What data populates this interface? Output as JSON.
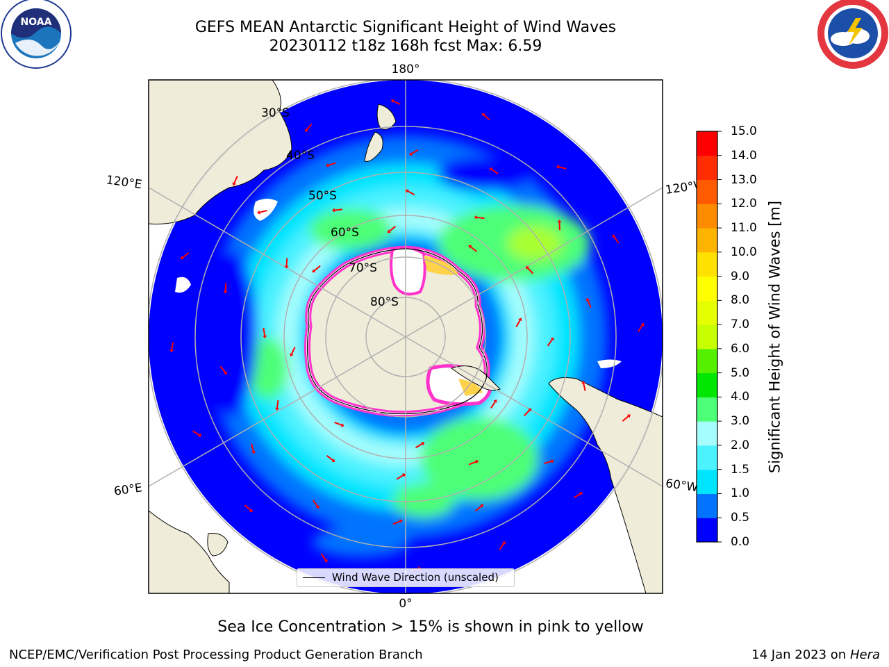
{
  "header": {
    "title_line1": "GEFS MEAN Antarctic Significant Height of Wind Waves",
    "title_line2": "20230112 t18z 168h fcst   Max: 6.59"
  },
  "logos": {
    "noaa": {
      "text": "NOAA",
      "ring_text": "NATIONAL OCEANIC AND ATMOSPHERIC ADMINISTRATION · U.S. DEPARTMENT OF COMMERCE"
    },
    "nws": {
      "ring_text": "NATIONAL WEATHER SERVICE"
    }
  },
  "map": {
    "projection": "South Polar Stereographic",
    "longitude_labels": {
      "top": "180°",
      "bottom": "0°",
      "upper_left": "120°E",
      "upper_right": "120°W",
      "lower_left": "60°E",
      "lower_right": "60°W"
    },
    "latitude_labels": [
      "30°S",
      "40°S",
      "50°S",
      "60°S",
      "70°S",
      "80°S"
    ],
    "legend": {
      "label": "Wind Wave Direction (unscaled)"
    },
    "colors": {
      "land": "#efecd9",
      "ice_edge": "#ff33cc",
      "arrows": "#ff0000"
    }
  },
  "colorbar": {
    "label": "Significant Height of Wind Waves [m]",
    "ticks": [
      "0.0",
      "0.5",
      "1.0",
      "1.5",
      "2.0",
      "3.0",
      "4.0",
      "5.0",
      "6.0",
      "7.0",
      "8.0",
      "9.0",
      "10.0",
      "11.0",
      "12.0",
      "13.0",
      "14.0",
      "15.0"
    ],
    "colors": [
      "#0000ff",
      "#0073ff",
      "#00e5ff",
      "#4df2ff",
      "#a6fdfd",
      "#4dff77",
      "#00e600",
      "#55f000",
      "#c7ff00",
      "#e6ff00",
      "#ffff00",
      "#ffe100",
      "#ffb400",
      "#ff8c00",
      "#ff5a00",
      "#ff2d00",
      "#ff0000"
    ]
  },
  "footer": {
    "note": "Sea Ice Concentration > 15% is shown in pink to yellow",
    "credit_left": "NCEP/EMC/Verification Post Processing Product Generation Branch",
    "credit_right_prefix": "14 Jan 2023 on ",
    "credit_right_host": "Hera"
  }
}
